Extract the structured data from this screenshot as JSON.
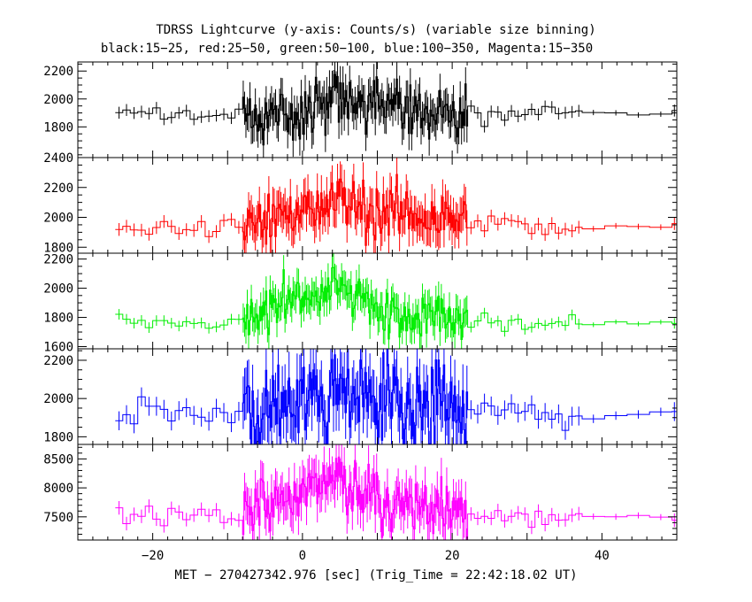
{
  "title": "TDRSS Lightcurve (y-axis: Counts/s) (variable size binning)",
  "subtitle": "black:15−25, red:25−50, green:50−100, blue:100−350, Magenta:15−350",
  "chart_data": {
    "type": "line",
    "xlabel": "MET − 270427342.976 [sec] (Trig_Time = 22:42:18.02 UT)",
    "xlim": [
      -30,
      50
    ],
    "xticks": [
      -20,
      0,
      20,
      40
    ],
    "xtick_labels": [
      "−20",
      "0",
      "20",
      "40"
    ],
    "panels": [
      {
        "name": "black:15−25",
        "color": "#000000",
        "ylim": [
          1800,
          2200
        ],
        "yrange": [
          1580,
          2265
        ],
        "yticks": [
          1800,
          2000,
          2200
        ],
        "yminor": 50,
        "baseline": 1885,
        "peak": 2120,
        "spread": 95,
        "profile": [
          [
            -25,
            1890
          ],
          [
            -10,
            1870
          ],
          [
            -8,
            1880
          ],
          [
            0,
            1900
          ],
          [
            5,
            1990
          ],
          [
            10,
            1940
          ],
          [
            20,
            1880
          ],
          [
            25,
            1870
          ],
          [
            30,
            1900
          ],
          [
            50,
            1890
          ]
        ]
      },
      {
        "name": "red:25−50",
        "color": "#ff0000",
        "ylim": [
          1800,
          2400
        ],
        "yrange": [
          1760,
          2400
        ],
        "yticks": [
          1800,
          2000,
          2200,
          2400
        ],
        "yminor": 50,
        "baseline": 1920,
        "peak": 2150,
        "spread": 95,
        "profile": [
          [
            -25,
            1910
          ],
          [
            -10,
            1940
          ],
          [
            -8,
            1950
          ],
          [
            0,
            2050
          ],
          [
            5,
            2120
          ],
          [
            9,
            2040
          ],
          [
            15,
            2020
          ],
          [
            20,
            1980
          ],
          [
            25,
            1980
          ],
          [
            30,
            1920
          ],
          [
            50,
            1940
          ]
        ]
      },
      {
        "name": "green:50−100",
        "color": "#00ee00",
        "ylim": [
          1600,
          2200
        ],
        "yrange": [
          1585,
          2240
        ],
        "yticks": [
          1600,
          1800,
          2000,
          2200
        ],
        "yminor": 50,
        "baseline": 1770,
        "peak": 2040,
        "spread": 80,
        "profile": [
          [
            -25,
            1770
          ],
          [
            -10,
            1760
          ],
          [
            -8,
            1780
          ],
          [
            0,
            1940
          ],
          [
            5,
            2000
          ],
          [
            9,
            1880
          ],
          [
            15,
            1820
          ],
          [
            20,
            1800
          ],
          [
            25,
            1780
          ],
          [
            30,
            1760
          ],
          [
            50,
            1760
          ]
        ]
      },
      {
        "name": "blue:100−350",
        "color": "#0000ff",
        "ylim": [
          1800,
          2200
        ],
        "yrange": [
          1760,
          2260
        ],
        "yticks": [
          1800,
          2000,
          2200
        ],
        "yminor": 50,
        "baseline": 1920,
        "peak": 2100,
        "spread": 110,
        "profile": [
          [
            -25,
            1930
          ],
          [
            -10,
            1920
          ],
          [
            -8,
            1960
          ],
          [
            0,
            2000
          ],
          [
            5,
            2010
          ],
          [
            10,
            1980
          ],
          [
            20,
            1940
          ],
          [
            25,
            1940
          ],
          [
            30,
            1920
          ],
          [
            50,
            1920
          ]
        ]
      },
      {
        "name": "Magenta:15−350",
        "color": "#ff00ff",
        "ylim": [
          7500,
          8500
        ],
        "yrange": [
          7100,
          8750
        ],
        "yticks": [
          7500,
          8000,
          8500
        ],
        "yminor": 100,
        "baseline": 7500,
        "peak": 8150,
        "spread": 260,
        "profile": [
          [
            -25,
            7510
          ],
          [
            -10,
            7520
          ],
          [
            -8,
            7560
          ],
          [
            0,
            7900
          ],
          [
            5,
            8050
          ],
          [
            8,
            7950
          ],
          [
            10,
            7780
          ],
          [
            15,
            7720
          ],
          [
            20,
            7620
          ],
          [
            25,
            7560
          ],
          [
            30,
            7520
          ],
          [
            50,
            7500
          ]
        ]
      }
    ]
  }
}
